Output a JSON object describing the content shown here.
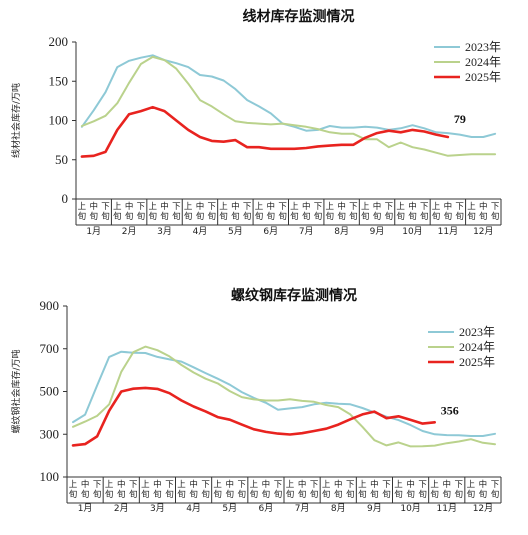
{
  "chart_data": [
    {
      "type": "line",
      "title": "线材库存监测情况",
      "ylabel": "线材社会库存/万吨",
      "ylim": [
        0,
        200
      ],
      "yticks": [
        0,
        50,
        100,
        150,
        200
      ],
      "x_sub_labels": [
        "上旬",
        "中旬",
        "下旬"
      ],
      "months": [
        "1月",
        "2月",
        "3月",
        "4月",
        "5月",
        "6月",
        "7月",
        "8月",
        "9月",
        "10月",
        "11月",
        "12月"
      ],
      "legend_position": "top-right",
      "series": [
        {
          "name": "2023年",
          "color": "#8ec9d6",
          "values": [
            92,
            113,
            136,
            168,
            176,
            180,
            183,
            177,
            173,
            168,
            158,
            156,
            151,
            140,
            126,
            118,
            109,
            96,
            92,
            87,
            88,
            93,
            91,
            91,
            92,
            91,
            88,
            90,
            94,
            90,
            85,
            84,
            82,
            79,
            79,
            83
          ]
        },
        {
          "name": "2024年",
          "color": "#bad28c",
          "values": [
            93,
            99,
            106,
            122,
            148,
            172,
            181,
            177,
            166,
            147,
            126,
            118,
            108,
            99,
            97,
            96,
            95,
            96,
            94,
            92,
            89,
            85,
            83,
            83,
            76,
            76,
            66,
            72,
            66,
            63,
            59,
            55,
            56,
            57,
            57,
            57
          ]
        },
        {
          "name": "2025年",
          "color": "#e8231f",
          "values": [
            54,
            55,
            60,
            88,
            108,
            112,
            117,
            112,
            100,
            88,
            79,
            74,
            73,
            75,
            66,
            66,
            64,
            64,
            64,
            65,
            67,
            68,
            69,
            69,
            78,
            84,
            87,
            85,
            88,
            86,
            82,
            79
          ]
        }
      ],
      "annotation": {
        "series": "2025年",
        "text": "79"
      }
    },
    {
      "type": "line",
      "title": "螺纹钢库存监测情况",
      "ylabel": "螺纹钢社会库存/万吨",
      "ylim": [
        100,
        900
      ],
      "yticks": [
        100,
        300,
        500,
        700,
        900
      ],
      "x_sub_labels": [
        "上旬",
        "中旬",
        "下旬"
      ],
      "months": [
        "1月",
        "2月",
        "3月",
        "4月",
        "5月",
        "6月",
        "7月",
        "8月",
        "9月",
        "10月",
        "11月",
        "12月"
      ],
      "legend_position": "top-right",
      "series": [
        {
          "name": "2023年",
          "color": "#8ec9d6",
          "values": [
            357,
            392,
            528,
            662,
            686,
            681,
            680,
            662,
            650,
            640,
            613,
            586,
            560,
            532,
            497,
            470,
            447,
            415,
            421,
            427,
            440,
            447,
            443,
            440,
            423,
            402,
            382,
            366,
            343,
            315,
            300,
            296,
            295,
            292,
            292,
            302
          ]
        },
        {
          "name": "2024年",
          "color": "#bad28c",
          "values": [
            335,
            359,
            386,
            440,
            592,
            684,
            710,
            693,
            664,
            624,
            589,
            560,
            538,
            502,
            474,
            463,
            458,
            458,
            464,
            456,
            452,
            437,
            427,
            393,
            335,
            272,
            248,
            262,
            243,
            244,
            247,
            258,
            266,
            277,
            260,
            253
          ]
        },
        {
          "name": "2025年",
          "color": "#e8231f",
          "values": [
            248,
            254,
            290,
            410,
            500,
            513,
            517,
            512,
            492,
            458,
            430,
            407,
            380,
            368,
            345,
            323,
            311,
            303,
            299,
            305,
            315,
            326,
            345,
            370,
            393,
            406,
            375,
            384,
            367,
            350,
            356
          ]
        }
      ],
      "annotation": {
        "series": "2025年",
        "text": "356"
      }
    }
  ]
}
